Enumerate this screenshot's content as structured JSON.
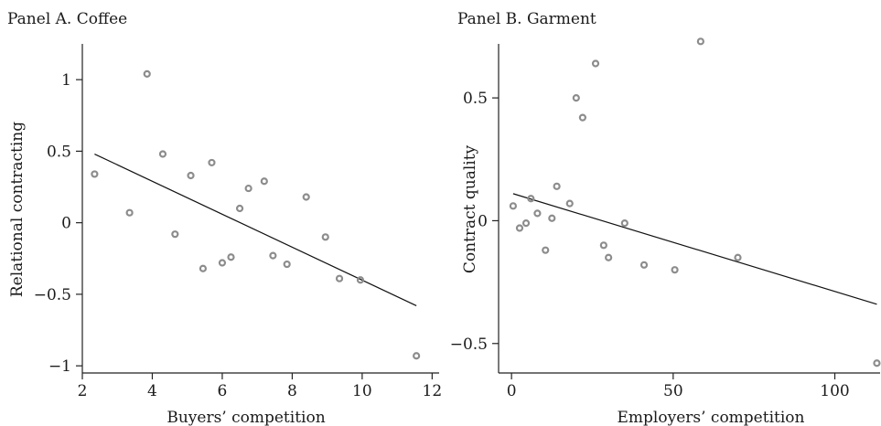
{
  "chart_data": [
    {
      "type": "scatter",
      "title": "Panel A. Coffee",
      "xlabel": "Buyers’ competition",
      "ylabel": "Relational contracting",
      "xlim": [
        2,
        12.2
      ],
      "ylim": [
        -1.05,
        1.25
      ],
      "xticks": [
        2,
        4,
        6,
        8,
        10,
        12
      ],
      "yticks": [
        -1,
        -0.5,
        0,
        0.5,
        1
      ],
      "ytick_labels": [
        "−1",
        "−0.5",
        "0",
        "0.5",
        "1"
      ],
      "grid": false,
      "points": {
        "x": [
          2.35,
          3.35,
          3.85,
          4.3,
          4.65,
          5.1,
          5.45,
          5.7,
          6.0,
          6.25,
          6.5,
          6.75,
          7.2,
          7.45,
          7.85,
          8.4,
          8.95,
          9.35,
          9.95,
          11.55
        ],
        "y": [
          0.34,
          0.07,
          1.04,
          0.48,
          -0.08,
          0.33,
          -0.32,
          0.42,
          -0.28,
          -0.24,
          0.1,
          0.24,
          0.29,
          -0.23,
          -0.29,
          0.18,
          -0.1,
          -0.39,
          -0.4,
          -0.93
        ]
      },
      "fit_line": {
        "x": [
          2.35,
          11.55
        ],
        "y": [
          0.48,
          -0.58
        ]
      }
    },
    {
      "type": "scatter",
      "title": "Panel B. Garment",
      "xlabel": "Employers’ competition",
      "ylabel": "Contract quality",
      "xlim": [
        -4,
        114
      ],
      "ylim": [
        -0.62,
        0.72
      ],
      "xticks": [
        0,
        50,
        100
      ],
      "yticks": [
        -0.5,
        0,
        0.5
      ],
      "ytick_labels": [
        "−0.5",
        "0",
        "0.5"
      ],
      "grid": false,
      "points": {
        "x": [
          0.5,
          2.5,
          4.5,
          6.0,
          8.0,
          10.5,
          12.5,
          14.0,
          18.0,
          20.0,
          22.0,
          26.0,
          28.5,
          30.0,
          35.0,
          41.0,
          50.5,
          58.5,
          70.0,
          113.0
        ],
        "y": [
          0.06,
          -0.03,
          -0.01,
          0.09,
          0.03,
          -0.12,
          0.01,
          0.14,
          0.07,
          0.5,
          0.42,
          0.64,
          -0.1,
          -0.15,
          -0.01,
          -0.18,
          -0.2,
          0.73,
          -0.15,
          -0.58
        ]
      },
      "fit_line": {
        "x": [
          0.5,
          113.0
        ],
        "y": [
          0.11,
          -0.34
        ]
      }
    }
  ]
}
